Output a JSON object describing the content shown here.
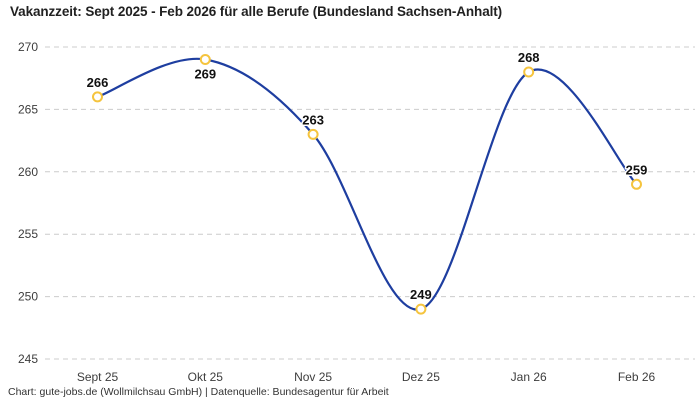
{
  "chart": {
    "title": "Vakanzzeit: Sept 2025 - Feb 2026 für alle Berufe (Bundesland Sachsen-Anhalt)",
    "footer": "Chart: gute-jobs.de (Wollmilchsau GmbH) | Datenquelle: Bundesagentur für Arbeit"
  },
  "chart_data": {
    "type": "line",
    "title": "Vakanzzeit: Sept 2025 - Feb 2026 für alle Berufe (Bundesland Sachsen-Anhalt)",
    "categories": [
      "Sept 25",
      "Okt 25",
      "Nov 25",
      "Dez 25",
      "Jan 26",
      "Feb 26"
    ],
    "values": [
      266,
      269,
      263,
      249,
      268,
      259
    ],
    "data_labels": [
      "266",
      "269",
      "263",
      "249",
      "268",
      "259"
    ],
    "label_positions": [
      "above",
      "below",
      "above",
      "above",
      "above",
      "above"
    ],
    "xlabel": "",
    "ylabel": "",
    "ylim": [
      245,
      270
    ],
    "yticks": [
      245,
      250,
      255,
      260,
      265,
      270
    ],
    "grid": "horizontal-dashed",
    "legend": "none",
    "curve": "spline",
    "colors": {
      "line": "#1e3ea0",
      "marker_stroke": "#f5c43e",
      "marker_fill": "#ffffff",
      "grid": "#cccccc",
      "background": "#ffffff"
    }
  }
}
